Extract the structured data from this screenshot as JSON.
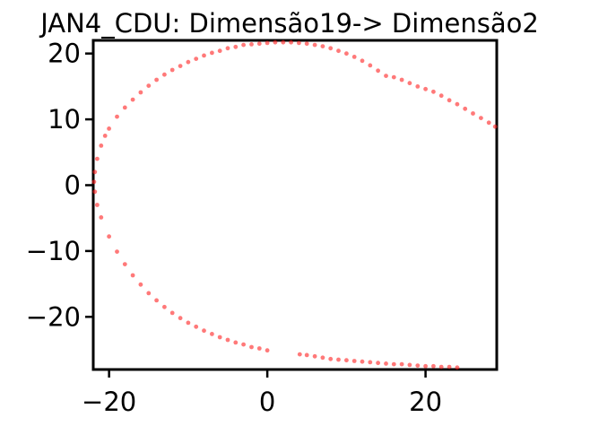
{
  "chart_data": {
    "type": "scatter",
    "title": "JAN4_CDU: Dimensão19-> Dimensão2",
    "xlabel": "",
    "ylabel": "",
    "xlim": [
      -22,
      29
    ],
    "ylim": [
      -28,
      22
    ],
    "grid": false,
    "xticks": [
      -20,
      0,
      20
    ],
    "yticks": [
      20,
      10,
      0,
      -10,
      -20
    ],
    "xtick_labels": [
      "−20",
      "0",
      "20"
    ],
    "ytick_labels": [
      "20",
      "10",
      "0",
      "−10",
      "−20"
    ],
    "point_color": "#ff2020",
    "points": [
      [
        4.1,
        -25.7
      ],
      [
        5.0,
        -25.8
      ],
      [
        6.0,
        -26.0
      ],
      [
        7.0,
        -26.2
      ],
      [
        8.0,
        -26.4
      ],
      [
        9.0,
        -26.5
      ],
      [
        10.0,
        -26.6
      ],
      [
        11.0,
        -26.7
      ],
      [
        12.0,
        -26.8
      ],
      [
        13.0,
        -26.9
      ],
      [
        14.0,
        -27.0
      ],
      [
        15.0,
        -27.1
      ],
      [
        16.0,
        -27.2
      ],
      [
        17.0,
        -27.2
      ],
      [
        18.0,
        -27.3
      ],
      [
        19.0,
        -27.4
      ],
      [
        20.0,
        -27.5
      ],
      [
        21.0,
        -27.5
      ],
      [
        22.0,
        -27.6
      ],
      [
        23.0,
        -27.6
      ],
      [
        24.0,
        -27.7
      ],
      [
        0.0,
        -25.1
      ],
      [
        -1.0,
        -24.8
      ],
      [
        -2.0,
        -24.6
      ],
      [
        -3.0,
        -24.2
      ],
      [
        -4.0,
        -23.9
      ],
      [
        -5.0,
        -23.5
      ],
      [
        -6.0,
        -23.1
      ],
      [
        -7.0,
        -22.6
      ],
      [
        -8.0,
        -22.1
      ],
      [
        -9.0,
        -21.5
      ],
      [
        -10.0,
        -20.9
      ],
      [
        -11.0,
        -20.2
      ],
      [
        -12.0,
        -19.4
      ],
      [
        -13.0,
        -18.5
      ],
      [
        -14.0,
        -17.5
      ],
      [
        -15.0,
        -16.4
      ],
      [
        -16.0,
        -15.1
      ],
      [
        -17.0,
        -13.7
      ],
      [
        -18.0,
        -12.0
      ],
      [
        -19.0,
        -10.1
      ],
      [
        -20.0,
        -7.8
      ],
      [
        -21.0,
        -4.9
      ],
      [
        -21.5,
        -3.0
      ],
      [
        -21.8,
        -1.0
      ],
      [
        -21.9,
        0.5
      ],
      [
        -21.8,
        2.0
      ],
      [
        -21.5,
        4.0
      ],
      [
        -21.0,
        6.0
      ],
      [
        -20.5,
        7.5
      ],
      [
        -20.0,
        8.6
      ],
      [
        -19.0,
        10.4
      ],
      [
        -18.0,
        11.8
      ],
      [
        -17.0,
        13.0
      ],
      [
        -16.0,
        14.1
      ],
      [
        -15.0,
        15.1
      ],
      [
        -14.0,
        16.0
      ],
      [
        -13.0,
        16.8
      ],
      [
        -12.0,
        17.5
      ],
      [
        -11.0,
        18.1
      ],
      [
        -10.0,
        18.7
      ],
      [
        -9.0,
        19.2
      ],
      [
        -8.0,
        19.7
      ],
      [
        -7.0,
        20.1
      ],
      [
        -6.0,
        20.4
      ],
      [
        -5.0,
        20.8
      ],
      [
        -4.0,
        21.0
      ],
      [
        -3.0,
        21.3
      ],
      [
        -2.0,
        21.4
      ],
      [
        -1.0,
        21.5
      ],
      [
        0.0,
        21.6
      ],
      [
        1.0,
        21.7
      ],
      [
        2.0,
        21.7
      ],
      [
        3.0,
        21.7
      ],
      [
        4.0,
        21.6
      ],
      [
        5.0,
        21.5
      ],
      [
        6.0,
        21.3
      ],
      [
        7.0,
        21.1
      ],
      [
        8.0,
        20.8
      ],
      [
        9.0,
        20.4
      ],
      [
        10.0,
        20.0
      ],
      [
        11.0,
        19.5
      ],
      [
        12.0,
        18.9
      ],
      [
        13.0,
        18.2
      ],
      [
        14.0,
        17.4
      ],
      [
        15.0,
        16.6
      ],
      [
        16.0,
        16.4
      ],
      [
        17.0,
        16.0
      ],
      [
        18.0,
        15.5
      ],
      [
        19.0,
        15.0
      ],
      [
        20.0,
        14.6
      ],
      [
        21.0,
        14.2
      ],
      [
        22.0,
        13.6
      ],
      [
        23.0,
        12.9
      ],
      [
        24.0,
        12.3
      ],
      [
        25.0,
        11.6
      ],
      [
        26.0,
        10.9
      ],
      [
        27.0,
        10.2
      ],
      [
        28.0,
        9.5
      ],
      [
        28.8,
        8.9
      ]
    ]
  }
}
